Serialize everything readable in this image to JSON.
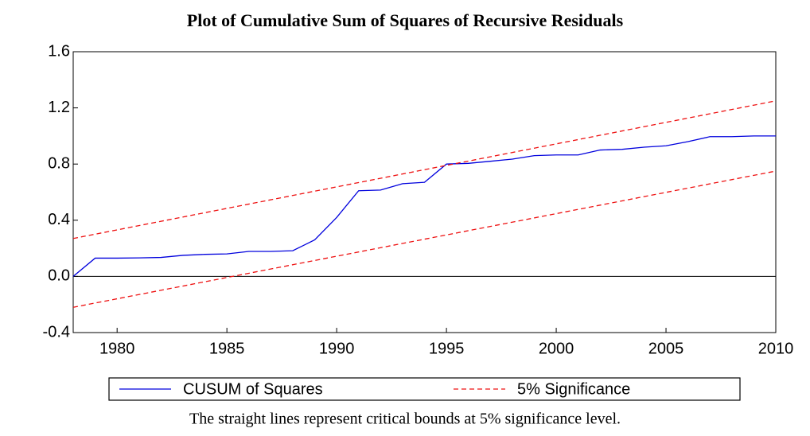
{
  "chart_data": {
    "type": "line",
    "title": "Plot of Cumulative Sum of Squares of Recursive Residuals",
    "caption": "The straight lines represent critical bounds at 5% significance level.",
    "series": [
      {
        "name": "CUSUM of Squares",
        "color": "#0000dd",
        "dash": false,
        "x": [
          1978,
          1979,
          1980,
          1981,
          1982,
          1983,
          1984,
          1985,
          1986,
          1987,
          1988,
          1989,
          1990,
          1991,
          1992,
          1993,
          1994,
          1995,
          1996,
          1997,
          1998,
          1999,
          2000,
          2001,
          2002,
          2003,
          2004,
          2005,
          2006,
          2007,
          2008,
          2009,
          2010
        ],
        "values": [
          0.0,
          0.13,
          0.13,
          0.132,
          0.135,
          0.15,
          0.157,
          0.16,
          0.178,
          0.178,
          0.183,
          0.26,
          0.42,
          0.61,
          0.615,
          0.66,
          0.67,
          0.8,
          0.805,
          0.82,
          0.835,
          0.86,
          0.865,
          0.865,
          0.9,
          0.905,
          0.92,
          0.93,
          0.96,
          0.995,
          0.995,
          1.0,
          1.0
        ]
      },
      {
        "name": "5% Significance",
        "color": "#ee1111",
        "dash": true,
        "x": [
          1978,
          2010
        ],
        "values": [
          0.27,
          1.25
        ]
      },
      {
        "color": "#ee1111",
        "dash": true,
        "x": [
          1978,
          2010
        ],
        "values": [
          -0.22,
          0.75
        ]
      }
    ],
    "xlim": [
      1978,
      2010
    ],
    "xticks": [
      1980,
      1985,
      1990,
      1995,
      2000,
      2005,
      2010
    ],
    "ylim": [
      -0.4,
      1.6
    ],
    "yticks": [
      -0.4,
      {
        "value": 0,
        "label": "0.0"
      },
      0.4,
      0.8,
      1.2,
      1.6
    ],
    "zero_line": true
  }
}
